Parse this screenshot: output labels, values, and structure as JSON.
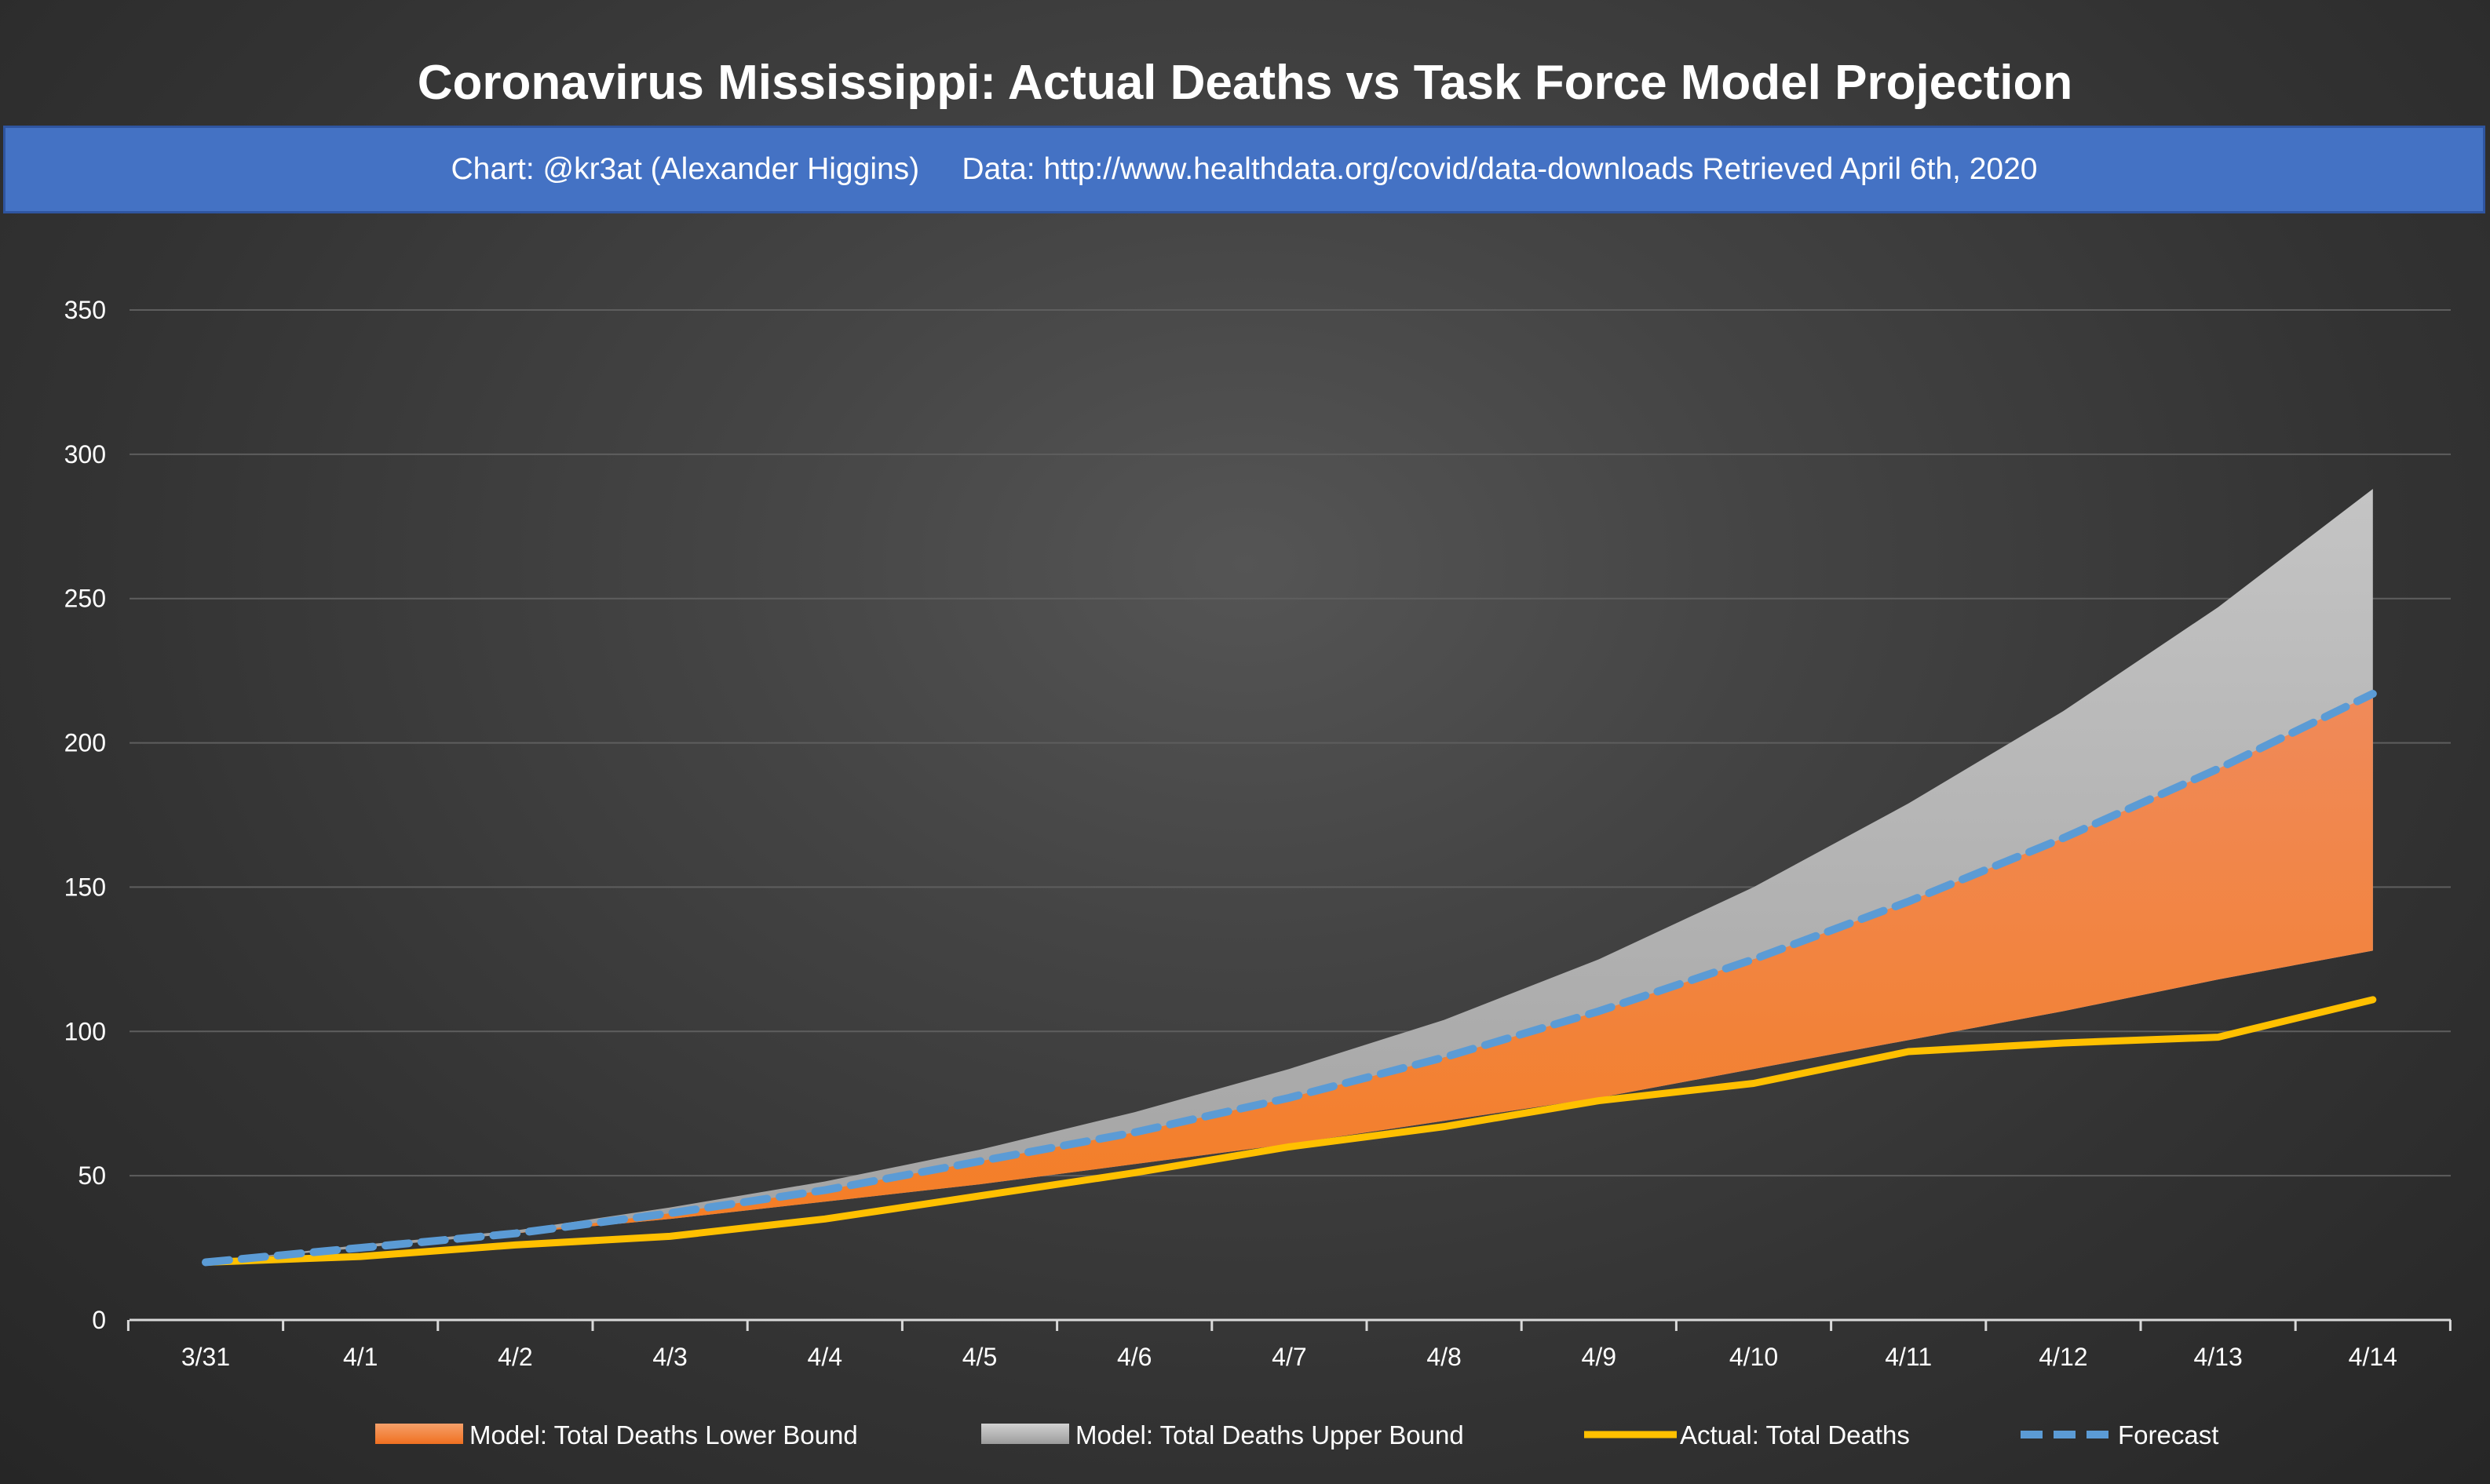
{
  "chart_data": {
    "type": "area",
    "title": "Coronavirus Mississippi: Actual Deaths vs Task Force Model Projection",
    "subtitle": "Chart: @kr3at (Alexander Higgins)     Data: http://www.healthdata.org/covid/data-downloads Retrieved April 6th, 2020",
    "xlabel": "",
    "ylabel": "",
    "categories": [
      "3/31",
      "4/1",
      "4/2",
      "4/3",
      "4/4",
      "4/5",
      "4/6",
      "4/7",
      "4/8",
      "4/9",
      "4/10",
      "4/11",
      "4/12",
      "4/13",
      "4/14"
    ],
    "y_ticks": [
      0,
      50,
      100,
      150,
      200,
      250,
      300,
      350
    ],
    "ylim": [
      0,
      350
    ],
    "grid": true,
    "legend_position": "bottom",
    "series": [
      {
        "name": "Model: Total Deaths Lower Bound",
        "kind": "area",
        "color": "#f47d22",
        "values": [
          20,
          25,
          30,
          35,
          41,
          47,
          54,
          61,
          69,
          77,
          87,
          97,
          107,
          118,
          128
        ]
      },
      {
        "name": "Model: Total Deaths Upper Bound",
        "kind": "area",
        "color": "#a6a6a6",
        "values": [
          20,
          26,
          31,
          39,
          48,
          59,
          72,
          87,
          104,
          125,
          150,
          179,
          211,
          247,
          288
        ]
      },
      {
        "name": "Actual: Total Deaths",
        "kind": "line",
        "color": "#ffc000",
        "values": [
          20,
          22,
          26,
          29,
          35,
          43,
          51,
          60,
          67,
          76,
          82,
          93,
          96,
          98,
          111
        ]
      },
      {
        "name": "Forecast",
        "kind": "dashed-line",
        "color": "#5b9bd5",
        "values": [
          20,
          25,
          30,
          37,
          45,
          55,
          65,
          77,
          91,
          107,
          125,
          145,
          167,
          191,
          217
        ]
      }
    ]
  }
}
